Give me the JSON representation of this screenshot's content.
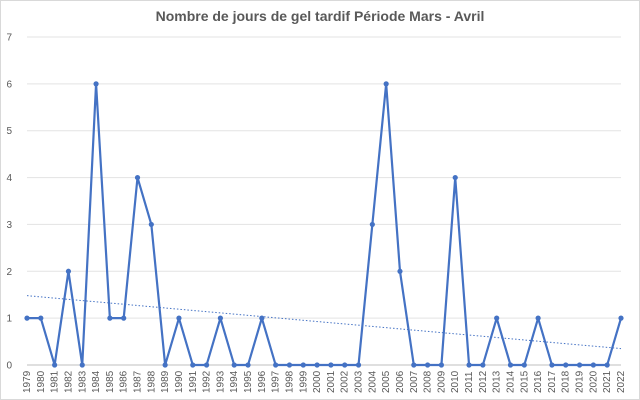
{
  "chart_data": {
    "type": "line",
    "title": "Nombre de jours de gel tardif Période Mars - Avril",
    "xlabel": "",
    "ylabel": "",
    "ylim": [
      0,
      7
    ],
    "yticks": [
      "0",
      "1",
      "2",
      "3",
      "4",
      "5",
      "6",
      "7"
    ],
    "categories": [
      "1979",
      "1980",
      "1981",
      "1982",
      "1983",
      "1984",
      "1985",
      "1986",
      "1987",
      "1988",
      "1989",
      "1990",
      "1991",
      "1992",
      "1993",
      "1994",
      "1995",
      "1996",
      "1997",
      "1998",
      "1999",
      "2000",
      "2001",
      "2002",
      "2003",
      "2004",
      "2005",
      "2006",
      "2007",
      "2008",
      "2009",
      "2010",
      "2011",
      "2012",
      "2013",
      "2014",
      "2015",
      "2016",
      "2017",
      "2018",
      "2019",
      "2020",
      "2021",
      "2022"
    ],
    "series": [
      {
        "values": [
          1,
          1,
          0,
          2,
          0,
          6,
          1,
          1,
          4,
          3,
          0,
          1,
          0,
          0,
          1,
          0,
          0,
          1,
          0,
          0,
          0,
          0,
          0,
          0,
          0,
          3,
          6,
          2,
          0,
          0,
          0,
          4,
          0,
          0,
          1,
          0,
          0,
          1,
          0,
          0,
          0,
          0,
          0,
          1
        ],
        "color": "#4472c4",
        "marker": "circle"
      }
    ],
    "trendline": {
      "type": "linear",
      "start": 1.48,
      "end": 0.35,
      "style": "dotted",
      "color": "#4472c4"
    },
    "grid": "horizontal",
    "legend": "none"
  }
}
